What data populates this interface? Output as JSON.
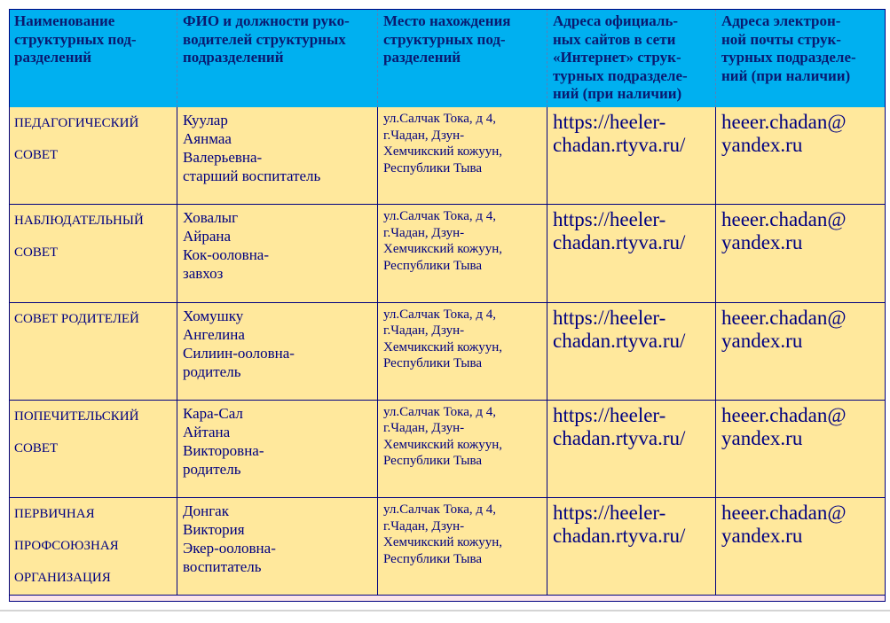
{
  "table": {
    "header": [
      [
        "Наименование",
        "структурных под-",
        "разделений"
      ],
      [
        "ФИО и должности руко-",
        "водителей структурных",
        "подразделений"
      ],
      [
        "Место нахождения",
        "структурных под-",
        "разделений"
      ],
      [
        "Адреса официаль-",
        "ных сайтов в сети",
        "«Интернет» струк-",
        "турных подразделе-",
        "ний (при наличии)"
      ],
      [
        "Адреса электрон-",
        "ной почты струк-",
        "турных подразделе-",
        "ний (при наличии)"
      ]
    ],
    "rows": [
      [
        [
          "ПЕДАГОГИЧЕСКИЙ",
          "СОВЕТ"
        ],
        [
          "Куулар",
          "Аянмаа",
          "Валерьевна-",
          "старший воспитатель"
        ],
        [
          "ул.Салчак Тока, д 4,",
          "г.Чадан, Дзун-",
          "Хемчикский кожуун,",
          "Республики Тыва"
        ],
        [
          "https://heeler-",
          "chadan.rtyva.ru/"
        ],
        [
          "heeer.chadan@",
          "yandex.ru"
        ]
      ],
      [
        [
          "НАБЛЮДАТЕЛЬНЫЙ",
          "СОВЕТ"
        ],
        [
          "Ховалыг",
          "Айрана",
          "Кок-ооловна-",
          "завхоз"
        ],
        [
          "ул.Салчак Тока, д 4,",
          "г.Чадан, Дзун-",
          "Хемчикский кожуун,",
          "Республики Тыва"
        ],
        [
          "https://heeler-",
          "chadan.rtyva.ru/"
        ],
        [
          "heeer.chadan@",
          "yandex.ru"
        ]
      ],
      [
        [
          "СОВЕТ РОДИТЕЛЕЙ"
        ],
        [
          "Хомушку",
          "Ангелина",
          "Силиин-ооловна-",
          "родитель"
        ],
        [
          "ул.Салчак Тока, д 4,",
          "г.Чадан, Дзун-",
          "Хемчикский кожуун,",
          "Республики Тыва"
        ],
        [
          "https://heeler-",
          "chadan.rtyva.ru/"
        ],
        [
          "heeer.chadan@",
          "yandex.ru"
        ]
      ],
      [
        [
          "ПОПЕЧИТЕЛЬСКИЙ",
          "СОВЕТ"
        ],
        [
          "Кара-Сал",
          "Айтана",
          "Викторовна-",
          "родитель"
        ],
        [
          "ул.Салчак Тока, д 4,",
          "г.Чадан, Дзун-",
          "Хемчикский кожуун,",
          "Республики Тыва"
        ],
        [
          "https://heeler-",
          "chadan.rtyva.ru/"
        ],
        [
          "heeer.chadan@",
          "yandex.ru"
        ]
      ],
      [
        [
          "ПЕРВИЧНАЯ",
          "ПРОФСОЮЗНАЯ",
          "ОРГАНИЗАЦИЯ"
        ],
        [
          "Донгак",
          "Виктория",
          "Экер-ооловна-",
          "воспитатель"
        ],
        [
          "ул.Салчак Тока, д 4,",
          "г.Чадан, Дзун-",
          "Хемчикский кожуун,",
          "Республики Тыва"
        ],
        [
          "https://heeler-",
          "chadan.rtyva.ru/"
        ],
        [
          "heeer.chadan@",
          "yandex.ru"
        ]
      ]
    ]
  }
}
